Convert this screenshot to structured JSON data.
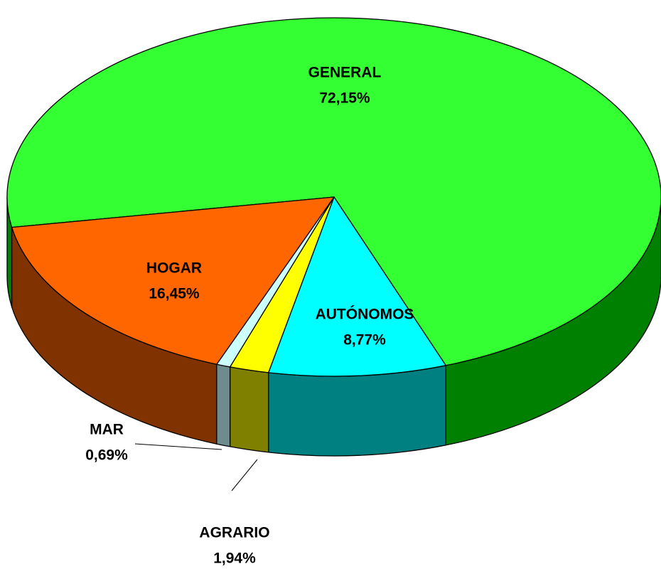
{
  "chart_data": {
    "type": "pie3d",
    "categories": [
      "GENERAL",
      "AUTÓNOMOS",
      "AGRARIO",
      "MAR",
      "HOGAR"
    ],
    "values": [
      72.15,
      8.77,
      1.94,
      0.69,
      16.45
    ],
    "value_labels": [
      "72,15%",
      "8,77%",
      "1,94%",
      "0,69%",
      "16,45%"
    ],
    "colors": [
      "#33ff33",
      "#00ffff",
      "#ffff00",
      "#ccffff",
      "#ff6600"
    ],
    "side_colors": [
      "#008000",
      "#008080",
      "#808000",
      "#6e8c8c",
      "#803300"
    ]
  }
}
